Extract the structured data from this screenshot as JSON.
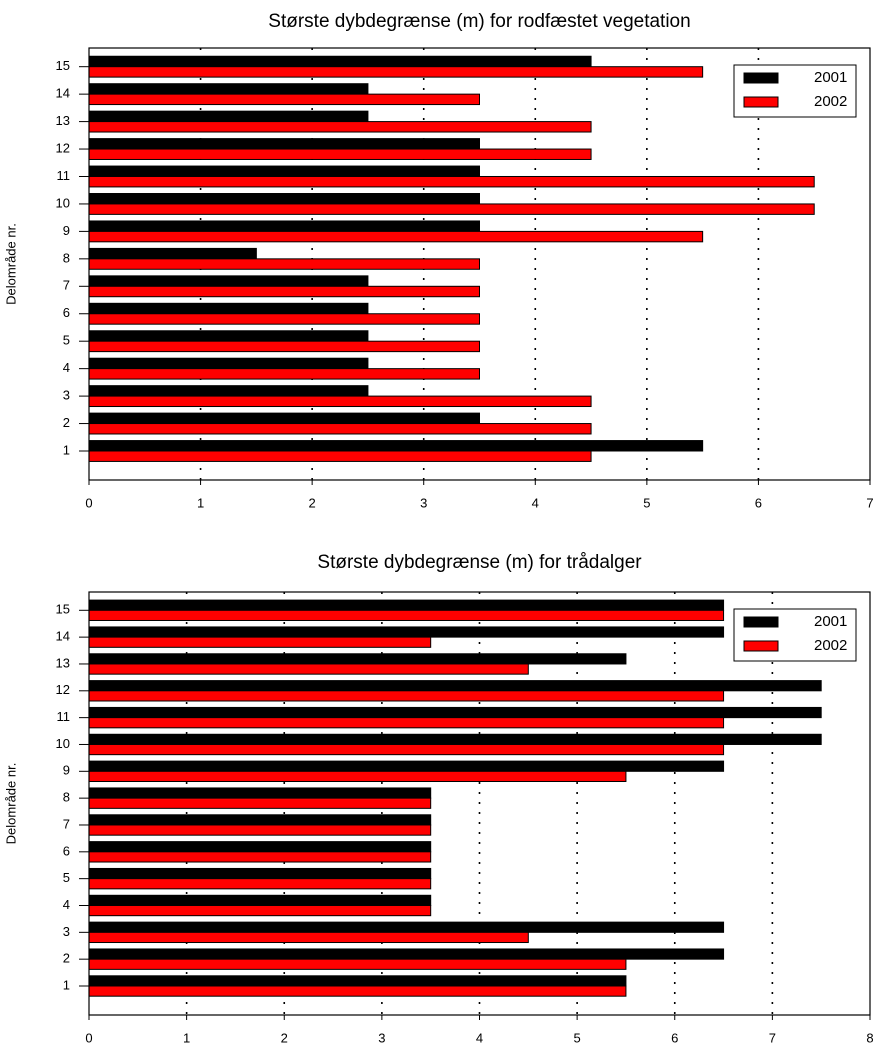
{
  "chart_data": [
    {
      "type": "barh",
      "title": "Største dybdegrænse (m)  for rodfæstet vegetation",
      "ylabel": "Delområde nr.",
      "categories": [
        "1",
        "2",
        "3",
        "4",
        "5",
        "6",
        "7",
        "8",
        "9",
        "10",
        "11",
        "12",
        "13",
        "14",
        "15"
      ],
      "series": [
        {
          "name": "2001",
          "color": "#000000",
          "values": [
            5.5,
            3.5,
            2.5,
            2.5,
            2.5,
            2.5,
            2.5,
            1.5,
            3.5,
            3.5,
            3.5,
            3.5,
            2.5,
            2.5,
            4.5
          ]
        },
        {
          "name": "2002",
          "color": "#ff0000",
          "values": [
            4.5,
            4.5,
            4.5,
            3.5,
            3.5,
            3.5,
            3.5,
            3.5,
            5.5,
            6.5,
            6.5,
            4.5,
            4.5,
            3.5,
            5.5
          ]
        }
      ],
      "xlim": [
        0,
        7
      ],
      "xticks": [
        0,
        1,
        2,
        3,
        4,
        5,
        6,
        7
      ],
      "grid": true,
      "legend": "upper right"
    },
    {
      "type": "barh",
      "title": "Største dybdegrænse (m)  for trådalger",
      "ylabel": "Delområde nr.",
      "categories": [
        "1",
        "2",
        "3",
        "4",
        "5",
        "6",
        "7",
        "8",
        "9",
        "10",
        "11",
        "12",
        "13",
        "14",
        "15"
      ],
      "series": [
        {
          "name": "2001",
          "color": "#000000",
          "values": [
            5.5,
            6.5,
            6.5,
            3.5,
            3.5,
            3.5,
            3.5,
            3.5,
            6.5,
            7.5,
            7.5,
            7.5,
            5.5,
            6.5,
            6.5
          ]
        },
        {
          "name": "2002",
          "color": "#ff0000",
          "values": [
            5.5,
            5.5,
            4.5,
            3.5,
            3.5,
            3.5,
            3.5,
            3.5,
            5.5,
            6.5,
            6.5,
            6.5,
            4.5,
            3.5,
            6.5
          ]
        }
      ],
      "xlim": [
        0,
        8
      ],
      "xticks": [
        0,
        1,
        2,
        3,
        4,
        5,
        6,
        7,
        8
      ],
      "grid": true,
      "legend": "upper right"
    }
  ]
}
